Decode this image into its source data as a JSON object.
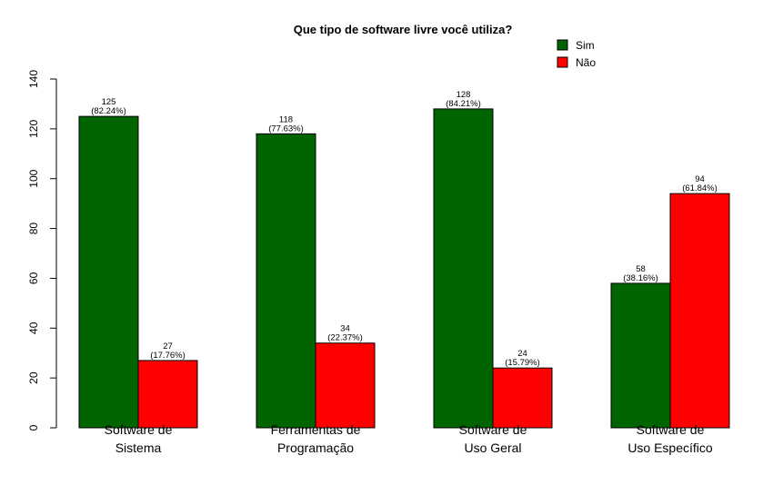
{
  "chart_data": {
    "type": "bar",
    "title": "Que tipo de software livre você utiliza?",
    "xlabel": "",
    "ylabel": "",
    "ylim": [
      0,
      140
    ],
    "yticks": [
      0,
      20,
      40,
      60,
      80,
      100,
      120,
      140
    ],
    "grid": false,
    "legend_position": "top-right",
    "categories": [
      [
        "Software de",
        "Sistema"
      ],
      [
        "Ferramentas de",
        "Programação"
      ],
      [
        "Software de",
        "Uso Geral"
      ],
      [
        "Software de",
        "Uso Específico"
      ]
    ],
    "series": [
      {
        "name": "Sim",
        "color": "#006400",
        "values": [
          125,
          118,
          128,
          58
        ],
        "labels": [
          "(82.24%)",
          "(77.63%)",
          "(84.21%)",
          "(38.16%)"
        ]
      },
      {
        "name": "Não",
        "color": "#ff0000",
        "values": [
          27,
          34,
          24,
          94
        ],
        "labels": [
          "(17.76%)",
          "(22.37%)",
          "(15.79%)",
          "(61.84%)"
        ]
      }
    ]
  }
}
